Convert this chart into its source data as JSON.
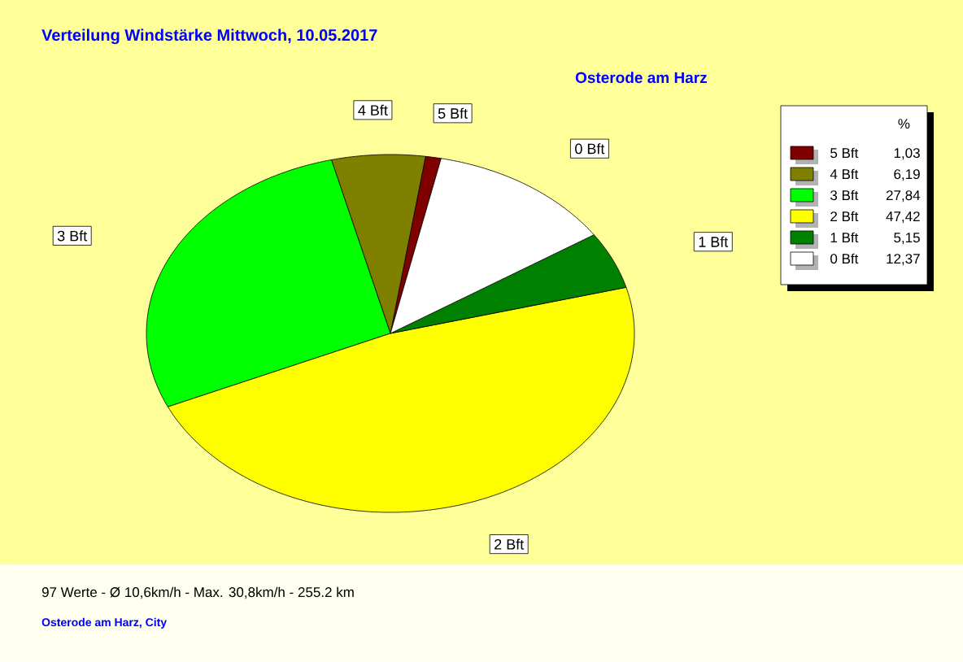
{
  "chart_data": {
    "type": "pie",
    "title": "Verteilung Windstärke  Mittwoch, 10.05.2017",
    "subtitle": "Osterode am Harz",
    "categories": [
      "5 Bft",
      "4 Bft",
      "3 Bft",
      "2 Bft",
      "1 Bft",
      "0 Bft"
    ],
    "values": [
      1.03,
      6.19,
      27.84,
      47.42,
      5.15,
      12.37
    ],
    "value_labels": [
      "1,03",
      "6,19",
      "27,84",
      "47,42",
      "5,15",
      "12,37"
    ],
    "colors": [
      "#800000",
      "#808000",
      "#00ff00",
      "#ffff00",
      "#008000",
      "#ffffff"
    ],
    "legend": "top right",
    "legend_title": "%",
    "annotations": [
      "97 Werte   -   Ø 10,6km/h  -  Max. 30,8km/h   -   255.2 km",
      "Osterode am Harz, City"
    ]
  }
}
